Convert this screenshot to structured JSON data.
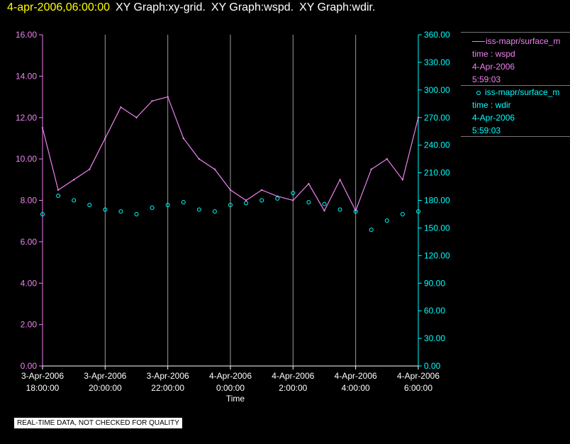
{
  "header": {
    "timestamp": "4-apr-2006,06:00:00",
    "titles": [
      "XY Graph:xy-grid.",
      "XY Graph:wspd.",
      "XY Graph:wdir."
    ]
  },
  "colors": {
    "wspd": "#ee82ee",
    "wdir": "#00ffff",
    "grid": "#9a9a9a",
    "text": "#ffffff"
  },
  "legend": {
    "wspd": {
      "label": "iss-mapr/surface_m",
      "var": "time : wspd",
      "date": "4-Apr-2006",
      "time": "5:59:03"
    },
    "wdir": {
      "label": "iss-mapr/surface_m",
      "var": "time : wdir",
      "date": "4-Apr-2006",
      "time": "5:59:03"
    }
  },
  "footer": "REAL-TIME DATA, NOT CHECKED FOR QUALITY",
  "chart_data": {
    "type": "line",
    "xlabel": "Time",
    "xlim": [
      "3-Apr-2006 18:00:00",
      "4-Apr-2006 06:00:00"
    ],
    "x_ticks": [
      {
        "date": "3-Apr-2006",
        "time": "18:00:00"
      },
      {
        "date": "3-Apr-2006",
        "time": "20:00:00"
      },
      {
        "date": "3-Apr-2006",
        "time": "22:00:00"
      },
      {
        "date": "4-Apr-2006",
        "time": "0:00:00"
      },
      {
        "date": "4-Apr-2006",
        "time": "2:00:00"
      },
      {
        "date": "4-Apr-2006",
        "time": "4:00:00"
      },
      {
        "date": "4-Apr-2006",
        "time": "6:00:00"
      }
    ],
    "y_left": {
      "lim": [
        0,
        16
      ],
      "ticks": [
        "0.00",
        "2.00",
        "4.00",
        "6.00",
        "8.00",
        "10.00",
        "12.00",
        "14.00",
        "16.00"
      ]
    },
    "y_right": {
      "lim": [
        0,
        360
      ],
      "ticks": [
        "0.00",
        "30.00",
        "60.00",
        "90.00",
        "120.00",
        "150.00",
        "180.00",
        "210.00",
        "240.00",
        "270.00",
        "300.00",
        "330.00",
        "360.00"
      ]
    },
    "grid": "vertical lines at x ticks",
    "series": [
      {
        "name": "wspd",
        "axis": "left",
        "style": "line",
        "x": [
          "3-Apr-2006 18:00:00",
          "3-Apr-2006 18:30:00",
          "3-Apr-2006 19:00:00",
          "3-Apr-2006 19:30:00",
          "3-Apr-2006 20:00:00",
          "3-Apr-2006 20:30:00",
          "3-Apr-2006 21:00:00",
          "3-Apr-2006 21:30:00",
          "3-Apr-2006 22:00:00",
          "3-Apr-2006 22:30:00",
          "3-Apr-2006 23:00:00",
          "3-Apr-2006 23:30:00",
          "4-Apr-2006 00:00:00",
          "4-Apr-2006 00:30:00",
          "4-Apr-2006 01:00:00",
          "4-Apr-2006 01:30:00",
          "4-Apr-2006 02:00:00",
          "4-Apr-2006 02:30:00",
          "4-Apr-2006 03:00:00",
          "4-Apr-2006 03:30:00",
          "4-Apr-2006 04:00:00",
          "4-Apr-2006 04:30:00",
          "4-Apr-2006 05:00:00",
          "4-Apr-2006 05:30:00",
          "4-Apr-2006 06:00:00"
        ],
        "values": [
          11.5,
          8.5,
          9.0,
          9.5,
          11.0,
          12.5,
          12.0,
          12.8,
          13.0,
          11.0,
          10.0,
          9.5,
          8.5,
          8.0,
          8.5,
          8.2,
          8.0,
          8.8,
          7.5,
          9.0,
          7.5,
          9.5,
          10.0,
          9.0,
          12.0
        ]
      },
      {
        "name": "wdir",
        "axis": "right",
        "style": "markers",
        "x": [
          "3-Apr-2006 18:00:00",
          "3-Apr-2006 18:30:00",
          "3-Apr-2006 19:00:00",
          "3-Apr-2006 19:30:00",
          "3-Apr-2006 20:00:00",
          "3-Apr-2006 20:30:00",
          "3-Apr-2006 21:00:00",
          "3-Apr-2006 21:30:00",
          "3-Apr-2006 22:00:00",
          "3-Apr-2006 22:30:00",
          "3-Apr-2006 23:00:00",
          "3-Apr-2006 23:30:00",
          "4-Apr-2006 00:00:00",
          "4-Apr-2006 00:30:00",
          "4-Apr-2006 01:00:00",
          "4-Apr-2006 01:30:00",
          "4-Apr-2006 02:00:00",
          "4-Apr-2006 02:30:00",
          "4-Apr-2006 03:00:00",
          "4-Apr-2006 03:30:00",
          "4-Apr-2006 04:00:00",
          "4-Apr-2006 04:30:00",
          "4-Apr-2006 05:00:00",
          "4-Apr-2006 05:30:00",
          "4-Apr-2006 06:00:00"
        ],
        "values": [
          165,
          185,
          180,
          175,
          170,
          168,
          165,
          172,
          175,
          178,
          170,
          168,
          175,
          177,
          180,
          182,
          188,
          178,
          176,
          170,
          168,
          148,
          158,
          165,
          168
        ]
      }
    ]
  }
}
